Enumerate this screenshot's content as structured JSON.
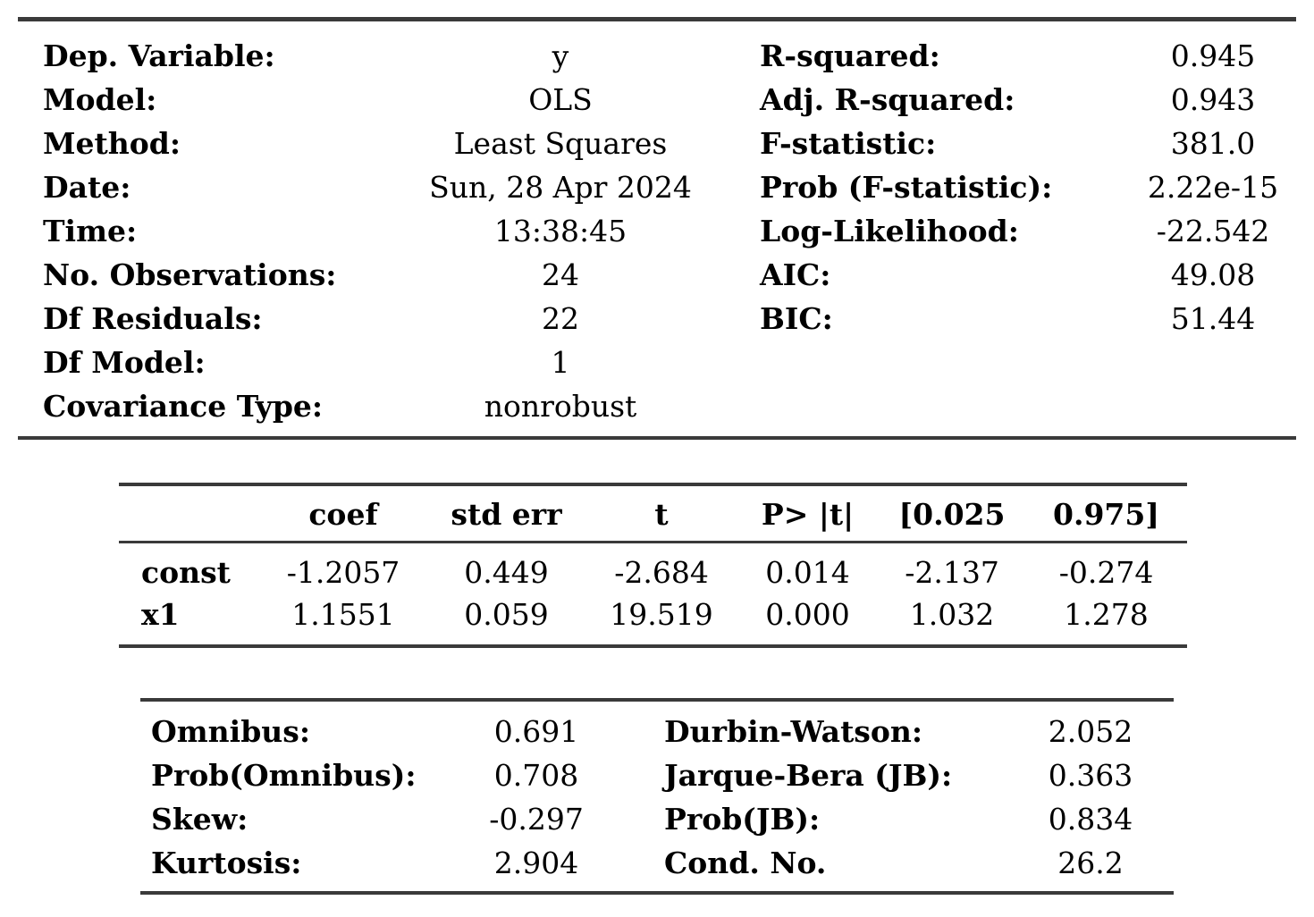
{
  "colors": {
    "background": "#ffffff",
    "text": "#000000",
    "rule": "#3a3a3a"
  },
  "summary": {
    "left_rows": [
      {
        "label": "Dep. Variable:",
        "value": "y"
      },
      {
        "label": "Model:",
        "value": "OLS"
      },
      {
        "label": "Method:",
        "value": "Least Squares"
      },
      {
        "label": "Date:",
        "value": "Sun, 28 Apr 2024"
      },
      {
        "label": "Time:",
        "value": "13:38:45"
      },
      {
        "label": "No. Observations:",
        "value": "24"
      },
      {
        "label": "Df Residuals:",
        "value": "22"
      },
      {
        "label": "Df Model:",
        "value": "1"
      },
      {
        "label": "Covariance Type:",
        "value": "nonrobust"
      }
    ],
    "right_rows": [
      {
        "label": "R-squared:",
        "value": "0.945"
      },
      {
        "label": "Adj. R-squared:",
        "value": "0.943"
      },
      {
        "label": "F-statistic:",
        "value": "381.0"
      },
      {
        "label": "Prob (F-statistic):",
        "value": "2.22e-15"
      },
      {
        "label": "Log-Likelihood:",
        "value": "-22.542"
      },
      {
        "label": "AIC:",
        "value": "49.08"
      },
      {
        "label": "BIC:",
        "value": "51.44"
      }
    ]
  },
  "coefficients": {
    "headers": [
      "coef",
      "std err",
      "t",
      "P> |t|",
      "[0.025",
      "0.975]"
    ],
    "rows": [
      {
        "name": "const",
        "values": [
          "-1.2057",
          "0.449",
          "-2.684",
          "0.014",
          "-2.137",
          "-0.274"
        ]
      },
      {
        "name": "x1",
        "values": [
          "1.1551",
          "0.059",
          "19.519",
          "0.000",
          "1.032",
          "1.278"
        ]
      }
    ]
  },
  "diagnostics": {
    "left_rows": [
      {
        "label": "Omnibus:",
        "value": "0.691"
      },
      {
        "label": "Prob(Omnibus):",
        "value": "0.708"
      },
      {
        "label": "Skew:",
        "value": "-0.297"
      },
      {
        "label": "Kurtosis:",
        "value": "2.904"
      }
    ],
    "right_rows": [
      {
        "label": "Durbin-Watson:",
        "value": "2.052"
      },
      {
        "label": "Jarque-Bera (JB):",
        "value": "0.363"
      },
      {
        "label": "Prob(JB):",
        "value": "0.834"
      },
      {
        "label": "Cond. No.",
        "value": "26.2"
      }
    ]
  }
}
